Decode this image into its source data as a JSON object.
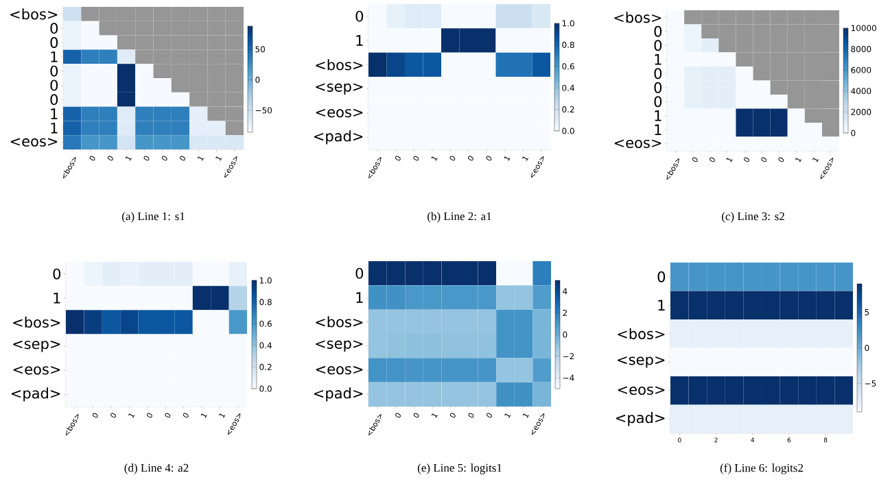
{
  "chart_data": [
    {
      "type": "heatmap",
      "title": "(a) Line 1: s1",
      "categories": [
        "<bos>",
        "0",
        "0",
        "1",
        "0",
        "0",
        "0",
        "1",
        "1",
        "<eos>"
      ],
      "y_categories": [
        "<bos>",
        "0",
        "0",
        "1",
        "0",
        "0",
        "0",
        "1",
        "1",
        "<eos>"
      ],
      "cells": [
        [
          -50,
          null,
          null,
          null,
          null,
          null,
          null,
          null,
          null,
          null
        ],
        [
          -75,
          -85,
          null,
          null,
          null,
          null,
          null,
          null,
          null,
          null
        ],
        [
          -75,
          -85,
          -85,
          null,
          null,
          null,
          null,
          null,
          null,
          null
        ],
        [
          55,
          35,
          35,
          -65,
          null,
          null,
          null,
          null,
          null,
          null
        ],
        [
          -75,
          -85,
          -85,
          88,
          -85,
          null,
          null,
          null,
          null,
          null
        ],
        [
          -75,
          -85,
          -85,
          88,
          -85,
          -85,
          null,
          null,
          null,
          null
        ],
        [
          -75,
          -85,
          -85,
          88,
          -85,
          -85,
          -85,
          null,
          null,
          null
        ],
        [
          55,
          35,
          35,
          -65,
          35,
          35,
          35,
          -70,
          null,
          null
        ],
        [
          55,
          35,
          35,
          -65,
          35,
          35,
          35,
          -70,
          -70,
          null
        ],
        [
          40,
          20,
          20,
          -55,
          20,
          20,
          20,
          -60,
          -60,
          -60
        ]
      ],
      "clim": [
        -86,
        88
      ],
      "cticks": [
        {
          "value": -50,
          "label": "−50"
        },
        0,
        50
      ]
    },
    {
      "type": "heatmap",
      "title": "(b) Line 2: a1",
      "categories": [
        "<bos>",
        "0",
        "0",
        "1",
        "0",
        "0",
        "0",
        "1",
        "1",
        "<eos>"
      ],
      "y_categories": [
        "0",
        "1",
        "<bos>",
        "<sep>",
        "<eos>",
        "<pad>"
      ],
      "cells": [
        [
          0,
          0.08,
          0.12,
          0.12,
          0,
          0,
          0,
          0.22,
          0.22,
          0.15
        ],
        [
          0,
          0,
          0,
          0,
          1,
          1,
          1,
          0,
          0,
          0
        ],
        [
          1,
          0.92,
          0.85,
          0.85,
          0,
          0,
          0,
          0.75,
          0.75,
          0.85
        ],
        [
          0,
          0,
          0,
          0,
          0,
          0,
          0,
          0,
          0,
          0
        ],
        [
          0,
          0,
          0,
          0,
          0,
          0,
          0,
          0,
          0,
          0
        ],
        [
          0,
          0,
          0,
          0,
          0,
          0,
          0,
          0,
          0,
          0
        ]
      ],
      "clim": [
        0,
        1
      ],
      "cticks": [
        {
          "value": 0,
          "label": "0.0"
        },
        0.2,
        0.4,
        0.6,
        0.8,
        {
          "value": 1,
          "label": "1.0"
        }
      ]
    },
    {
      "type": "heatmap",
      "title": "(c) Line 3: s2",
      "categories": [
        "<bos>",
        "0",
        "0",
        "1",
        "0",
        "0",
        "0",
        "1",
        "1",
        "<eos>"
      ],
      "y_categories": [
        "<bos>",
        "0",
        "0",
        "1",
        "0",
        "0",
        "0",
        "1",
        "1",
        "<eos>"
      ],
      "cells": [
        [
          0,
          null,
          null,
          null,
          null,
          null,
          null,
          null,
          null,
          null
        ],
        [
          0,
          500,
          null,
          null,
          null,
          null,
          null,
          null,
          null,
          null
        ],
        [
          0,
          500,
          1000,
          null,
          null,
          null,
          null,
          null,
          null,
          null
        ],
        [
          0,
          0,
          0,
          0,
          null,
          null,
          null,
          null,
          null,
          null
        ],
        [
          0,
          800,
          1000,
          1000,
          0,
          null,
          null,
          null,
          null,
          null
        ],
        [
          0,
          800,
          1000,
          1000,
          0,
          0,
          null,
          null,
          null,
          null
        ],
        [
          0,
          800,
          1000,
          1000,
          0,
          0,
          0,
          null,
          null,
          null
        ],
        [
          0,
          0,
          0,
          0,
          10000,
          10000,
          10000,
          0,
          null,
          null
        ],
        [
          0,
          0,
          0,
          0,
          10000,
          10000,
          10000,
          0,
          0,
          null
        ],
        [
          0,
          0,
          0,
          0,
          0,
          0,
          0,
          0,
          0,
          0
        ]
      ],
      "clim": [
        0,
        10000
      ],
      "cticks": [
        0,
        2000,
        4000,
        6000,
        8000,
        10000
      ]
    },
    {
      "type": "heatmap",
      "title": "(d) Line 4: a2",
      "categories": [
        "<bos>",
        "0",
        "0",
        "1",
        "0",
        "0",
        "0",
        "1",
        "1",
        "<eos>"
      ],
      "y_categories": [
        "0",
        "1",
        "<bos>",
        "<sep>",
        "<eos>",
        "<pad>"
      ],
      "cells": [
        [
          0,
          0.05,
          0.1,
          0.07,
          0.1,
          0.1,
          0.1,
          0,
          0,
          0.08
        ],
        [
          0,
          0,
          0,
          0,
          0,
          0,
          0,
          1,
          1,
          0.3
        ],
        [
          1,
          0.95,
          0.85,
          0.92,
          0.85,
          0.85,
          0.85,
          0,
          0,
          0.6
        ],
        [
          0,
          0,
          0,
          0,
          0,
          0,
          0,
          0,
          0,
          0
        ],
        [
          0,
          0,
          0,
          0,
          0,
          0,
          0,
          0,
          0,
          0
        ],
        [
          0,
          0,
          0,
          0,
          0,
          0,
          0,
          0,
          0,
          0
        ]
      ],
      "clim": [
        0,
        1
      ],
      "cticks": [
        {
          "value": 0,
          "label": "0.0"
        },
        0.2,
        0.4,
        0.6,
        0.8,
        {
          "value": 1,
          "label": "1.0"
        }
      ]
    },
    {
      "type": "heatmap",
      "title": "(e) Line 5: logits1",
      "categories": [
        "<bos>",
        "0",
        "0",
        "1",
        "0",
        "0",
        "0",
        "1",
        "1",
        "<eos>"
      ],
      "y_categories": [
        "0",
        "1",
        "<bos>",
        "<sep>",
        "<eos>",
        "<pad>"
      ],
      "cells": [
        [
          5,
          5,
          5,
          5,
          5,
          5,
          5,
          -5,
          -5,
          2
        ],
        [
          1.3,
          1.3,
          1,
          1,
          1,
          1,
          1,
          -1,
          -1,
          0.8
        ],
        [
          -1,
          -1,
          -1,
          -1,
          -1,
          -1,
          -1,
          1.2,
          1.2,
          -0.3
        ],
        [
          -1,
          -0.9,
          -0.8,
          -0.8,
          -0.9,
          -0.9,
          -0.9,
          1.2,
          1.2,
          -0.3
        ],
        [
          1.2,
          1.2,
          1.1,
          1.1,
          1.1,
          1.1,
          1.1,
          -1,
          -1,
          0.8
        ],
        [
          -1,
          -1,
          -1,
          -1,
          -1,
          -1,
          -1,
          1.3,
          1.3,
          -0.3
        ]
      ],
      "clim": [
        -5,
        5
      ],
      "cticks": [
        {
          "value": -4,
          "label": "−4"
        },
        {
          "value": -2,
          "label": "−2"
        },
        0,
        2,
        4
      ]
    },
    {
      "type": "heatmap",
      "title": "(f) Line 6: logits2",
      "x": [
        0,
        1,
        2,
        3,
        4,
        5,
        6,
        7,
        8,
        9
      ],
      "xlim": [
        -0.5,
        9.5
      ],
      "xticks": [
        0,
        2,
        4,
        6,
        8
      ],
      "y_categories": [
        "0",
        "1",
        "<bos>",
        "<sep>",
        "<eos>",
        "<pad>"
      ],
      "cells": [
        [
          2,
          2,
          2,
          2,
          2,
          2,
          2,
          2,
          2,
          2
        ],
        [
          9,
          9,
          9,
          9,
          9,
          9,
          9,
          9,
          9,
          9
        ],
        [
          -7.5,
          -7.5,
          -7.5,
          -7.5,
          -7.5,
          -7.5,
          -7.5,
          -7.5,
          -7.5,
          -7.5
        ],
        [
          -9,
          -9,
          -9,
          -9,
          -9,
          -9,
          -9,
          -9,
          -9,
          -9
        ],
        [
          9,
          9,
          9,
          9,
          9,
          9,
          9,
          9,
          9,
          9
        ],
        [
          -7.5,
          -7.5,
          -7.5,
          -7.5,
          -7.5,
          -7.5,
          -7.5,
          -7.5,
          -7.5,
          -7.5
        ]
      ],
      "clim": [
        -9,
        9
      ],
      "cticks": [
        {
          "value": -5,
          "label": "−5"
        },
        0,
        5
      ]
    }
  ]
}
